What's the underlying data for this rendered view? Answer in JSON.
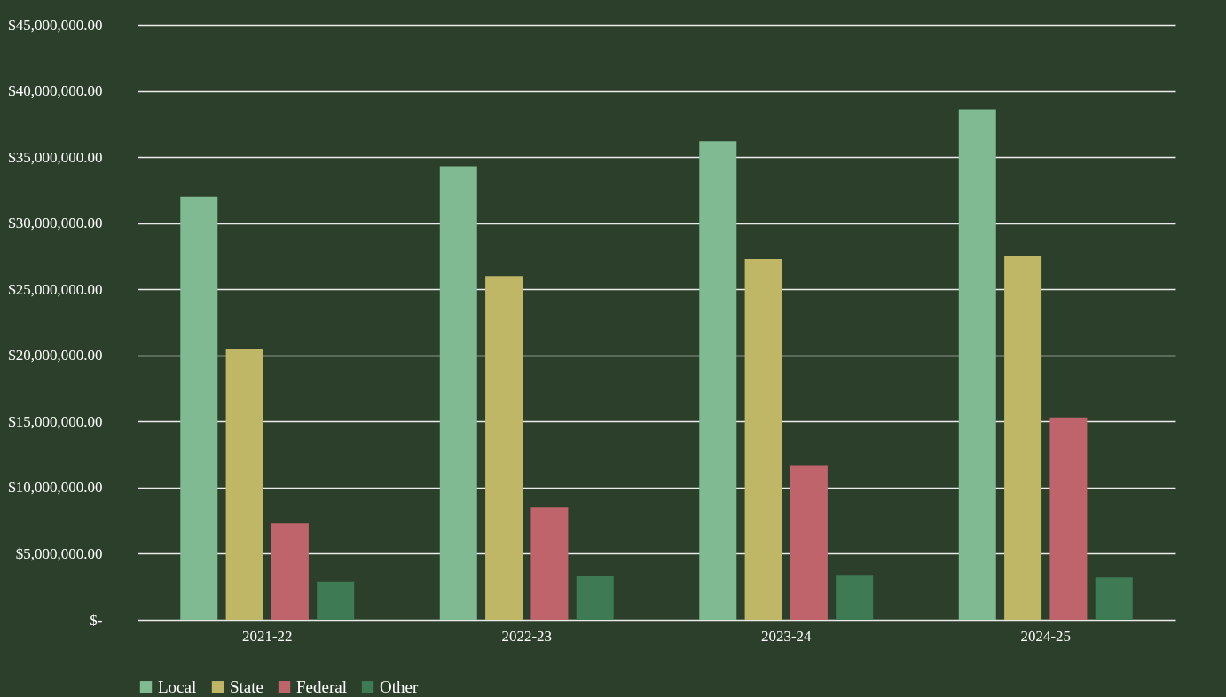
{
  "chart_data": {
    "type": "bar",
    "categories": [
      "2021-22",
      "2022-23",
      "2023-24",
      "2024-25"
    ],
    "series": [
      {
        "name": "Local",
        "color": "#7fba92",
        "values": [
          32000000,
          34300000,
          36200000,
          38600000
        ]
      },
      {
        "name": "State",
        "color": "#bfb666",
        "values": [
          20500000,
          26000000,
          27300000,
          27500000
        ]
      },
      {
        "name": "Federal",
        "color": "#c0646b",
        "values": [
          7300000,
          8500000,
          11700000,
          15300000
        ]
      },
      {
        "name": "Other",
        "color": "#3e7b55",
        "values": [
          2900000,
          3350000,
          3400000,
          3200000
        ]
      }
    ],
    "ylim": [
      0,
      45000000
    ],
    "yticks": [
      {
        "value": 0,
        "label": "$-"
      },
      {
        "value": 5000000,
        "label": "$5,000,000.00"
      },
      {
        "value": 10000000,
        "label": "$10,000,000.00"
      },
      {
        "value": 15000000,
        "label": "$15,000,000.00"
      },
      {
        "value": 20000000,
        "label": "$20,000,000.00"
      },
      {
        "value": 25000000,
        "label": "$25,000,000.00"
      },
      {
        "value": 30000000,
        "label": "$30,000,000.00"
      },
      {
        "value": 35000000,
        "label": "$35,000,000.00"
      },
      {
        "value": 40000000,
        "label": "$40,000,000.00"
      },
      {
        "value": 45000000,
        "label": "$45,000,000.00"
      }
    ],
    "grid": "y",
    "legend": "bottom"
  }
}
